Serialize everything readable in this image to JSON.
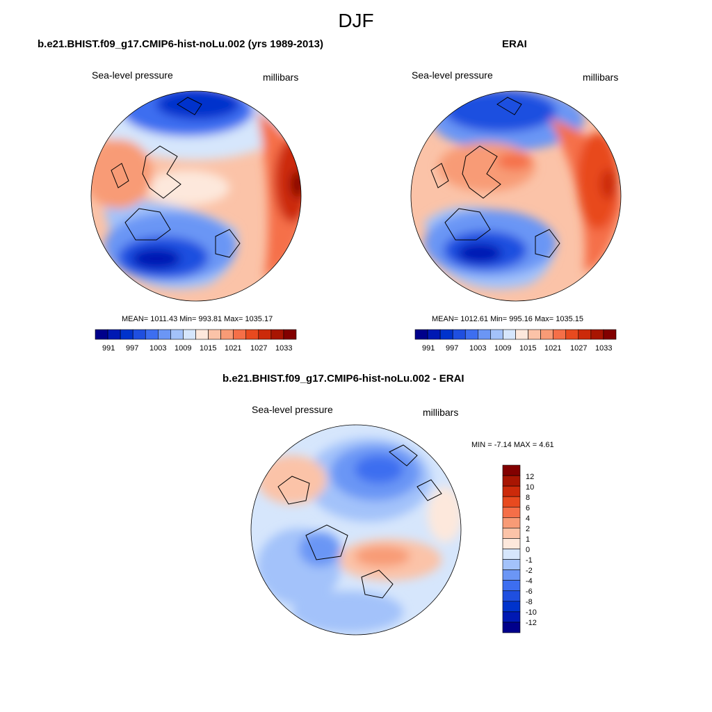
{
  "figure": {
    "season": "DJF"
  },
  "panels": [
    {
      "title": "b.e21.BHIST.f09_g17.CMIP6-hist-noLu.002 (yrs 1989-2013)",
      "left_label": "Sea-level pressure",
      "right_label": "millibars",
      "stats_text": "MEAN= 1011.43  Min= 993.81  Max= 1035.17",
      "mean": 1011.43,
      "min": 993.81,
      "max": 1035.17
    },
    {
      "title": "ERAI",
      "left_label": "Sea-level pressure",
      "right_label": "millibars",
      "stats_text": "MEAN= 1012.61  Min= 995.16  Max= 1035.15",
      "mean": 1012.61,
      "min": 995.16,
      "max": 1035.15
    },
    {
      "title": "b.e21.BHIST.f09_g17.CMIP6-hist-noLu.002 - ERAI",
      "left_label": "Sea-level pressure",
      "right_label": "millibars",
      "stats_text": "MIN =  -7.14 MAX =   4.61",
      "min": -7.14,
      "max": 4.61
    }
  ],
  "colorbars": {
    "absolute": {
      "colors": [
        "#00008b",
        "#0019b3",
        "#0033cc",
        "#1f4fe0",
        "#3d6ef0",
        "#6b96f5",
        "#a3c2fa",
        "#d6e6fc",
        "#fde8dc",
        "#fbc3a8",
        "#f89b76",
        "#f56f48",
        "#e84a1f",
        "#cc2a0a",
        "#a81502",
        "#820000"
      ],
      "tick_labels": [
        "991",
        "997",
        "1003",
        "1009",
        "1015",
        "1021",
        "1027",
        "1033"
      ]
    },
    "difference": {
      "colors": [
        "#820000",
        "#a81502",
        "#cc2a0a",
        "#e84a1f",
        "#f56f48",
        "#f89b76",
        "#fbc3a8",
        "#fde8dc",
        "#d6e6fc",
        "#a3c2fa",
        "#6b96f5",
        "#3d6ef0",
        "#1f4fe0",
        "#0033cc",
        "#0019b3",
        "#00008b"
      ],
      "tick_labels": [
        "12",
        "10",
        "8",
        "6",
        "4",
        "2",
        "1",
        "0",
        "-1",
        "-2",
        "-4",
        "-6",
        "-8",
        "-10",
        "-12"
      ]
    }
  }
}
